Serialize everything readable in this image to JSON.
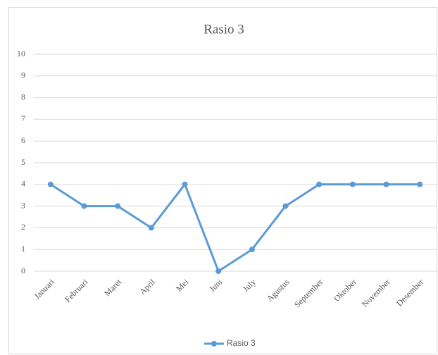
{
  "chart_data": {
    "type": "line",
    "title": "Rasio 3",
    "categories": [
      "Januari",
      "Februari",
      "Maret",
      "April",
      "Mei",
      "Juni",
      "July",
      "Agustus",
      "September",
      "Oktober",
      "November",
      "Desember"
    ],
    "series": [
      {
        "name": "Rasio 3",
        "color": "#5b9bd5",
        "values": [
          4,
          3,
          3,
          2,
          4,
          0,
          1,
          3,
          4,
          4,
          4,
          4
        ]
      }
    ],
    "ylim": [
      0,
      10
    ],
    "yticks": [
      0,
      1,
      2,
      3,
      4,
      5,
      6,
      7,
      8,
      9,
      10
    ],
    "grid": true,
    "legend": "bottom"
  }
}
